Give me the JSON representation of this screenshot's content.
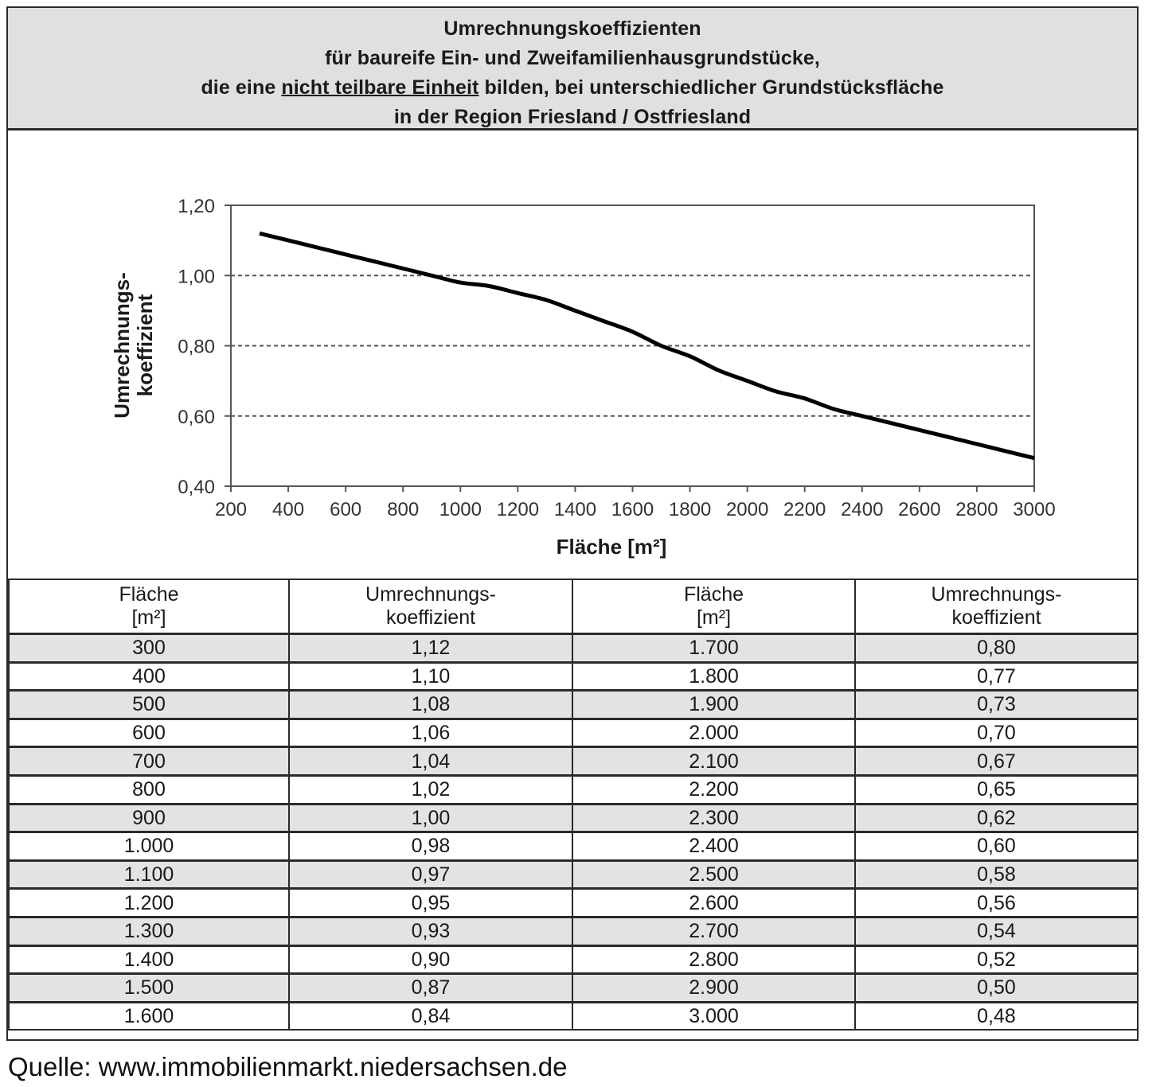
{
  "header": {
    "line1": "Umrechnungskoeffizienten",
    "line2": "für baureife Ein- und Zweifamilienhausgrundstücke,",
    "line3_pre": "die eine ",
    "line3_underlined": "nicht teilbare Einheit",
    "line3_post": " bilden, bei unterschiedlicher Grundstücksfläche",
    "line4": "in der Region Friesland / Ostfriesland"
  },
  "chart_data": {
    "type": "line",
    "title": "Umrechnungskoeffizienten für baureife Ein- und Zweifamilienhausgrundstücke, die eine nicht teilbare Einheit bilden, bei unterschiedlicher Grundstücksfläche in der Region Friesland / Ostfriesland",
    "xlabel": "Fläche [m²]",
    "ylabel": "Umrechnungs-koeffizient",
    "ylabel_lines": [
      "Umrechnungs-",
      "koeffizient"
    ],
    "xlim": [
      200,
      3000
    ],
    "ylim": [
      0.4,
      1.2
    ],
    "x_ticks": [
      "200",
      "400",
      "600",
      "800",
      "1000",
      "1200",
      "1400",
      "1600",
      "1800",
      "2000",
      "2200",
      "2400",
      "2600",
      "2800",
      "3000"
    ],
    "y_ticks": [
      "0,40",
      "0,60",
      "0,80",
      "1,00",
      "1,20"
    ],
    "grid": "horizontal dashed at 0,60 / 0,80 / 1,00",
    "legend": null,
    "series": [
      {
        "name": "Umrechnungskoeffizient",
        "x": [
          300,
          400,
          500,
          600,
          700,
          800,
          900,
          1000,
          1100,
          1200,
          1300,
          1400,
          1500,
          1600,
          1700,
          1800,
          1900,
          2000,
          2100,
          2200,
          2300,
          2400,
          2500,
          2600,
          2700,
          2800,
          2900,
          3000
        ],
        "y": [
          1.12,
          1.1,
          1.08,
          1.06,
          1.04,
          1.02,
          1.0,
          0.98,
          0.97,
          0.95,
          0.93,
          0.9,
          0.87,
          0.84,
          0.8,
          0.77,
          0.73,
          0.7,
          0.67,
          0.65,
          0.62,
          0.6,
          0.58,
          0.56,
          0.54,
          0.52,
          0.5,
          0.48
        ]
      }
    ]
  },
  "table": {
    "headers": [
      {
        "l1": "Fläche",
        "l2": "[m²]"
      },
      {
        "l1": "Umrechnungs-",
        "l2": "koeffizient"
      },
      {
        "l1": "Fläche",
        "l2": "[m²]"
      },
      {
        "l1": "Umrechnungs-",
        "l2": "koeffizient"
      }
    ],
    "rows": [
      [
        "300",
        "1,12",
        "1.700",
        "0,80"
      ],
      [
        "400",
        "1,10",
        "1.800",
        "0,77"
      ],
      [
        "500",
        "1,08",
        "1.900",
        "0,73"
      ],
      [
        "600",
        "1,06",
        "2.000",
        "0,70"
      ],
      [
        "700",
        "1,04",
        "2.100",
        "0,67"
      ],
      [
        "800",
        "1,02",
        "2.200",
        "0,65"
      ],
      [
        "900",
        "1,00",
        "2.300",
        "0,62"
      ],
      [
        "1.000",
        "0,98",
        "2.400",
        "0,60"
      ],
      [
        "1.100",
        "0,97",
        "2.500",
        "0,58"
      ],
      [
        "1.200",
        "0,95",
        "2.600",
        "0,56"
      ],
      [
        "1.300",
        "0,93",
        "2.700",
        "0,54"
      ],
      [
        "1.400",
        "0,90",
        "2.800",
        "0,52"
      ],
      [
        "1.500",
        "0,87",
        "2.900",
        "0,50"
      ],
      [
        "1.600",
        "0,84",
        "3.000",
        "0,48"
      ]
    ]
  },
  "source": "Quelle: www.immobilienmarkt.niedersachsen.de",
  "colors": {
    "header_bg": "#e0e0e0",
    "row_shade": "#e3e3e3",
    "line": "#000000",
    "border": "#2a2a2a"
  }
}
